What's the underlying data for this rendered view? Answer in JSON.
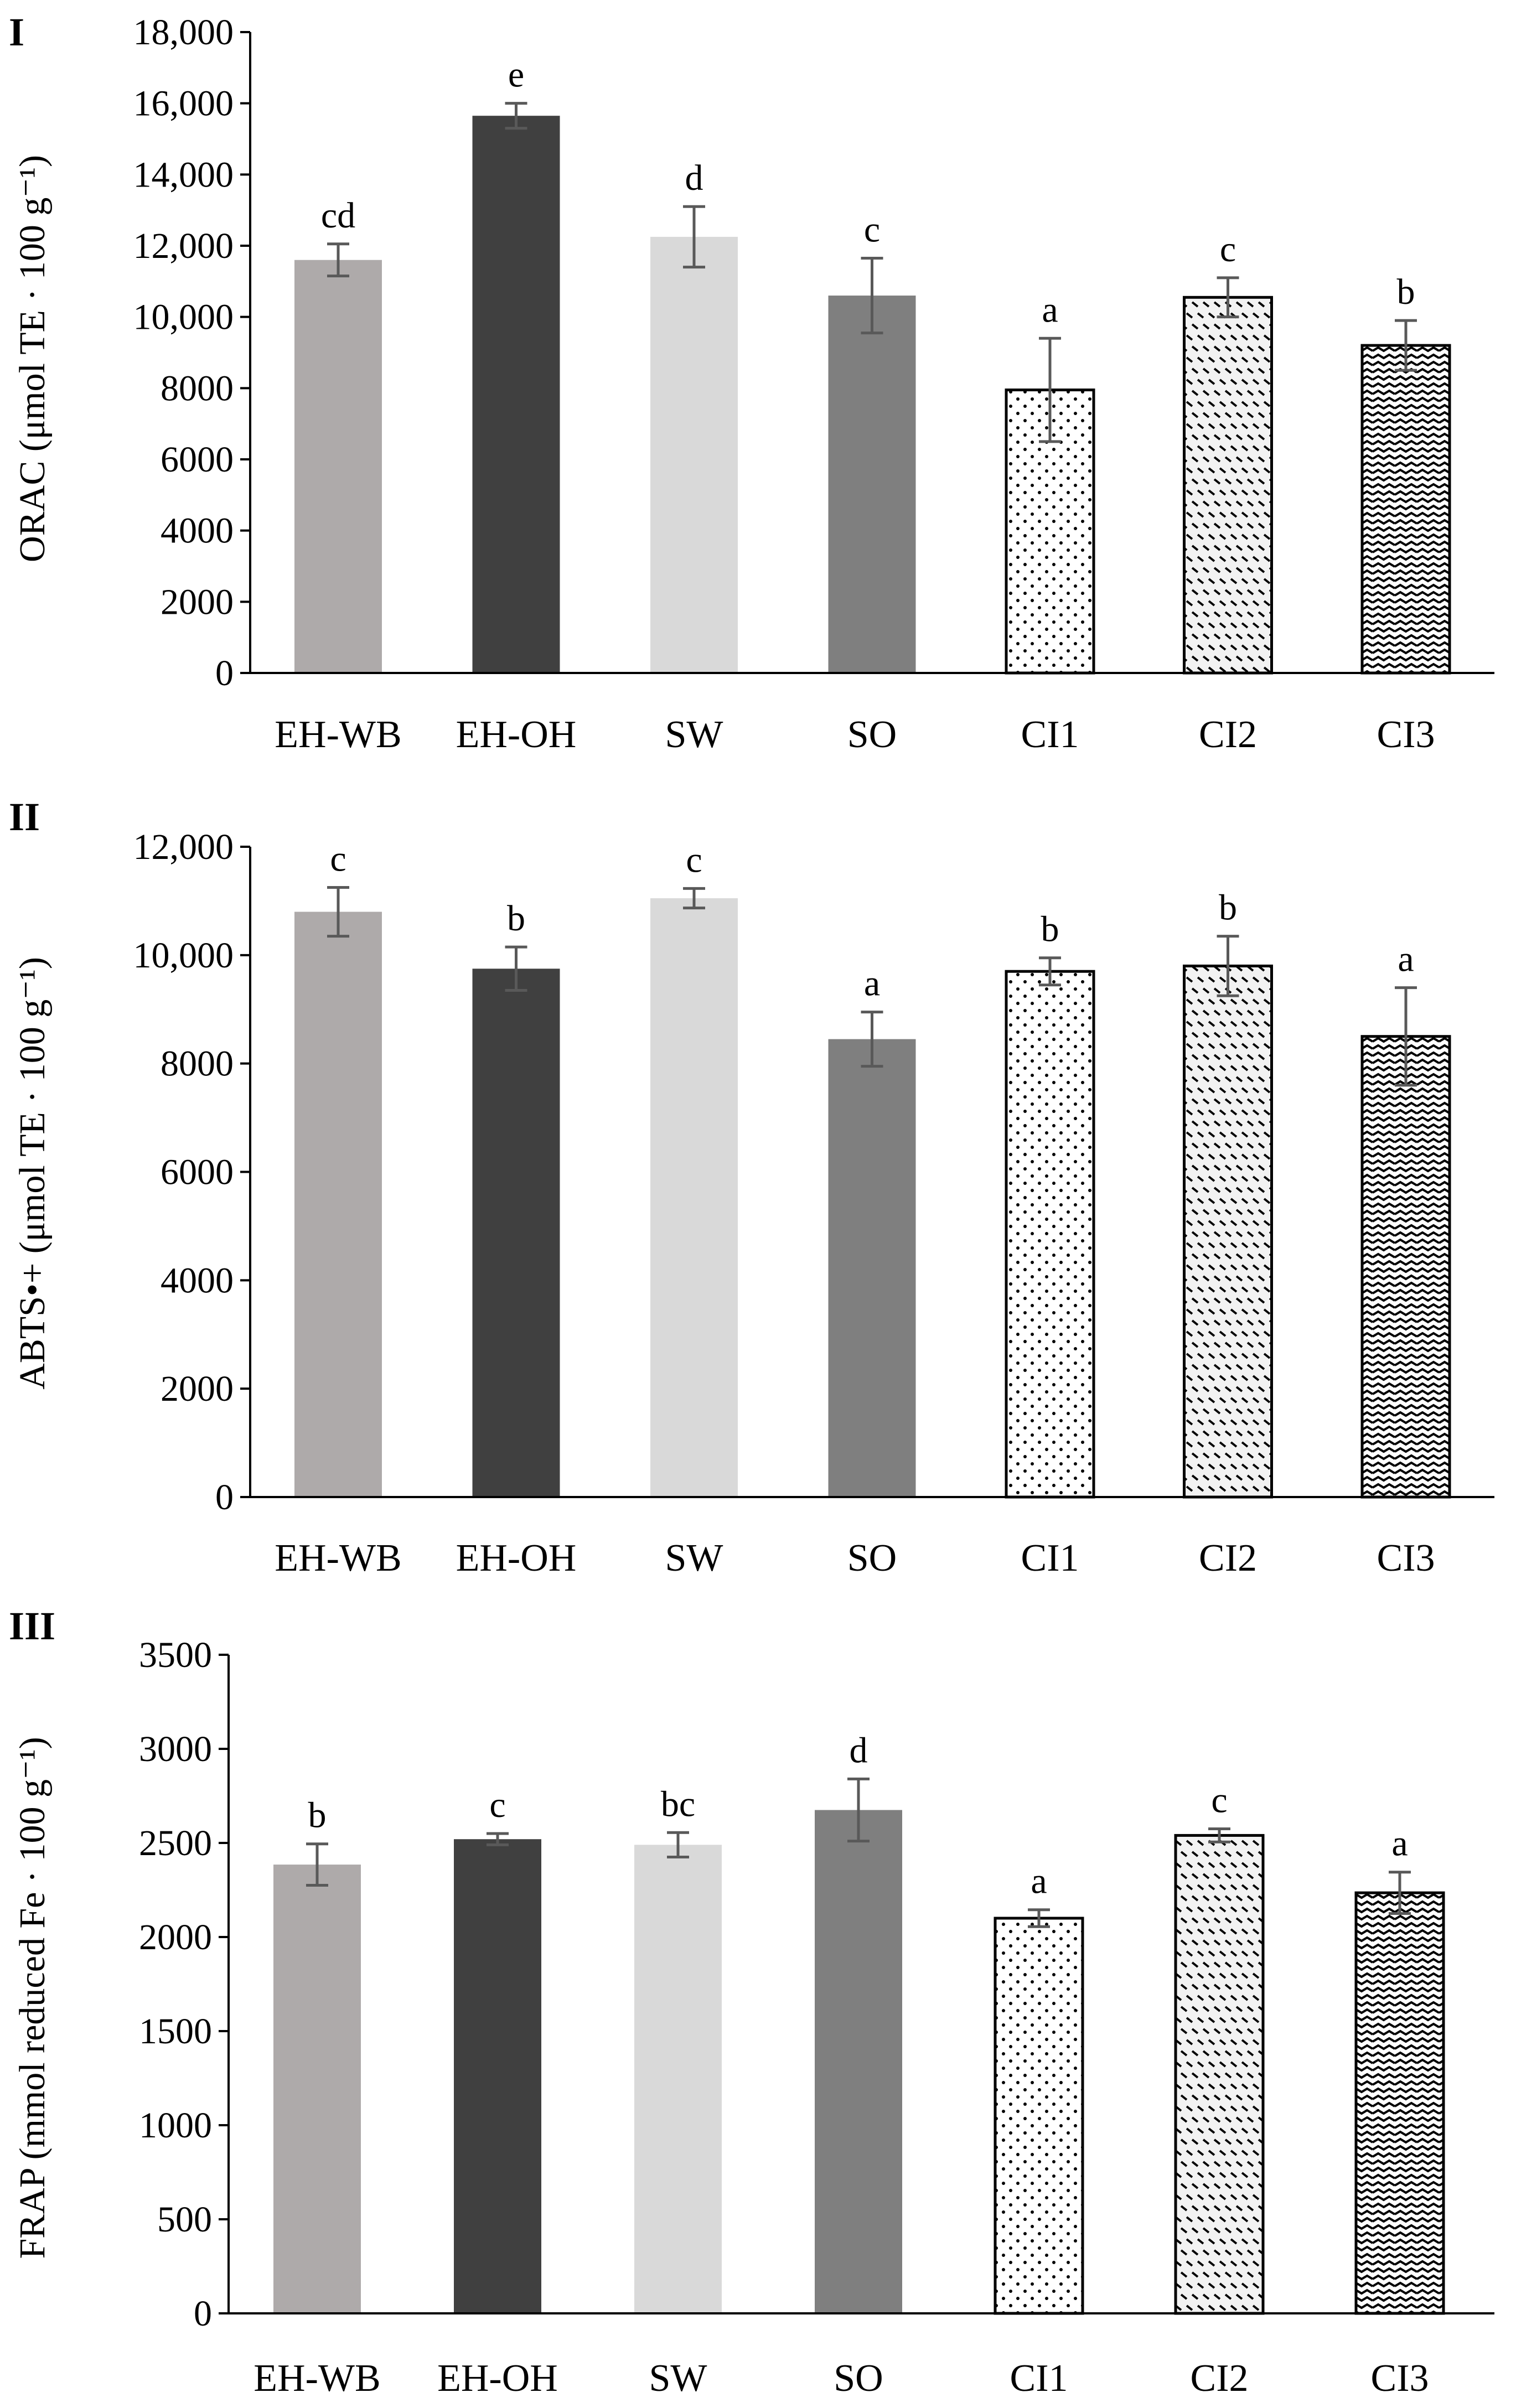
{
  "chart_data": [
    {
      "type": "bar",
      "panel_label": "I",
      "ylabel": "ORAC (μmol TE · 100 g⁻¹)",
      "categories": [
        "EH-WB",
        "EH-OH",
        "SW",
        "SO",
        "CI1",
        "CI2",
        "CI3"
      ],
      "values": [
        11600,
        15650,
        12250,
        10600,
        7950,
        10550,
        9200
      ],
      "errors": [
        450,
        350,
        850,
        1050,
        1450,
        550,
        700
      ],
      "significance": [
        "cd",
        "e",
        "d",
        "c",
        "a",
        "c",
        "b"
      ],
      "ylim": [
        0,
        18000
      ],
      "yticks": [
        0,
        2000,
        4000,
        6000,
        8000,
        10000,
        12000,
        14000,
        16000,
        18000
      ],
      "ytick_labels": [
        "0",
        "2000",
        "4000",
        "6000",
        "8000",
        "10,000",
        "12,000",
        "14,000",
        "16,000",
        "18,000"
      ],
      "grid": false,
      "legend": "none"
    },
    {
      "type": "bar",
      "panel_label": "II",
      "ylabel": "ABTS•+ (μmol TE · 100 g⁻¹)",
      "categories": [
        "EH-WB",
        "EH-OH",
        "SW",
        "SO",
        "CI1",
        "CI2",
        "CI3"
      ],
      "values": [
        10800,
        9750,
        11050,
        8450,
        9700,
        9800,
        8500
      ],
      "errors": [
        450,
        400,
        180,
        500,
        250,
        550,
        900
      ],
      "significance": [
        "c",
        "b",
        "c",
        "a",
        "b",
        "b",
        "a"
      ],
      "ylim": [
        0,
        12000
      ],
      "yticks": [
        0,
        2000,
        4000,
        6000,
        8000,
        10000,
        12000
      ],
      "ytick_labels": [
        "0",
        "2000",
        "4000",
        "6000",
        "8000",
        "10,000",
        "12,000"
      ],
      "grid": false,
      "legend": "none"
    },
    {
      "type": "bar",
      "panel_label": "III",
      "ylabel": "FRAP (mmol reduced Fe · 100 g⁻¹)",
      "categories": [
        "EH-WB",
        "EH-OH",
        "SW",
        "SO",
        "CI1",
        "CI2",
        "CI3"
      ],
      "values": [
        2385,
        2520,
        2490,
        2675,
        2100,
        2540,
        2235
      ],
      "errors": [
        110,
        30,
        65,
        165,
        45,
        35,
        110
      ],
      "significance": [
        "b",
        "c",
        "bc",
        "d",
        "a",
        "c",
        "a"
      ],
      "ylim": [
        0,
        3500
      ],
      "yticks": [
        0,
        500,
        1000,
        1500,
        2000,
        2500,
        3000,
        3500
      ],
      "ytick_labels": [
        "0",
        "500",
        "1000",
        "1500",
        "2000",
        "2500",
        "3000",
        "3500"
      ],
      "grid": false,
      "legend": "none"
    }
  ],
  "bar_styles": [
    {
      "fill": "#aeaaaa",
      "pattern": "none"
    },
    {
      "fill": "#404040",
      "pattern": "none"
    },
    {
      "fill": "#d9d9d9",
      "pattern": "none"
    },
    {
      "fill": "#7f7f7f",
      "pattern": "none"
    },
    {
      "fill": "#ffffff",
      "pattern": "dots"
    },
    {
      "fill": "#ffffff",
      "pattern": "dashes"
    },
    {
      "fill": "#ffffff",
      "pattern": "zigzag"
    }
  ],
  "error_bar_color": "#595959"
}
